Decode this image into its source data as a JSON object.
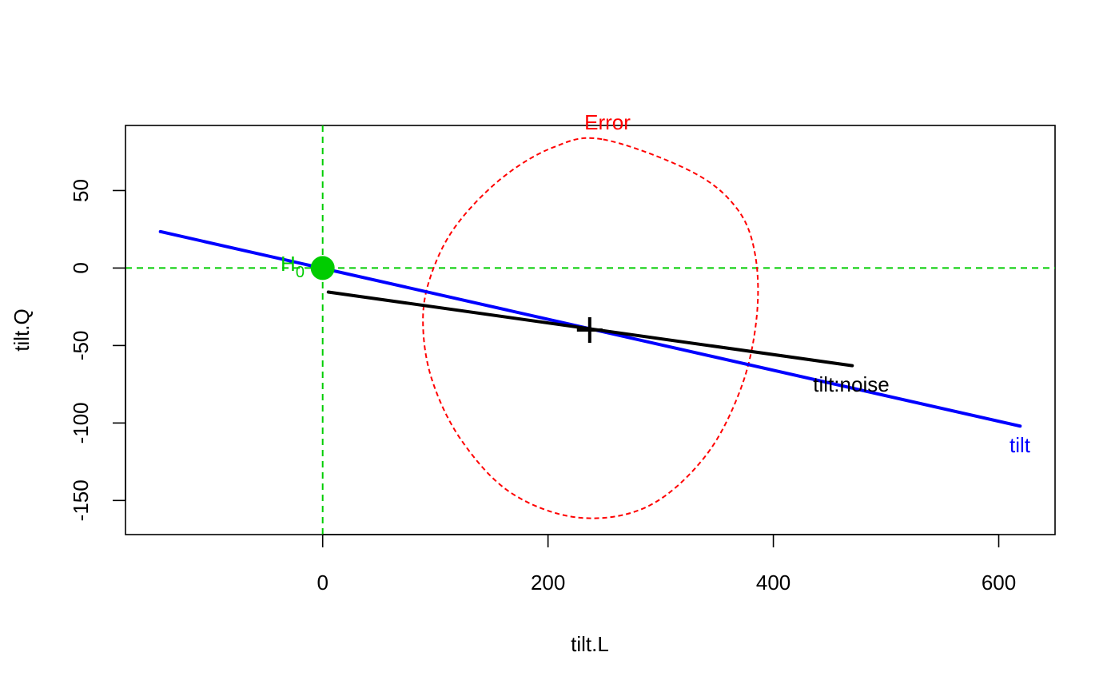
{
  "chart_data": {
    "type": "line",
    "title": "",
    "xlabel": "tilt.L",
    "ylabel": "tilt.Q",
    "xlim": [
      -175,
      650
    ],
    "ylim": [
      -172,
      92
    ],
    "xticks": [
      0,
      200,
      400,
      600
    ],
    "yticks": [
      50,
      0,
      -50,
      -100,
      -150
    ],
    "grid": false,
    "colors": {
      "h0": "#00cc00",
      "tilt": "#0000ff",
      "error": "#ff0000",
      "term": "#000000"
    },
    "hypothesis_point": {
      "label_main": "H",
      "label_sub": "0",
      "x": 0,
      "y": 0
    },
    "reference_lines": {
      "vertical_x": 0,
      "horizontal_y": 0,
      "style": "dashed"
    },
    "center": {
      "x": 237,
      "y": -40
    },
    "series": [
      {
        "name": "tilt",
        "x": [
          -144,
          619
        ],
        "y": [
          23.5,
          -102
        ]
      },
      {
        "name": "tilt:noise",
        "x": [
          5,
          470
        ],
        "y": [
          -15.5,
          -63
        ]
      }
    ],
    "ellipse": {
      "name": "Error",
      "points": [
        [
          249,
          83
        ],
        [
          328,
          62
        ],
        [
          368,
          38
        ],
        [
          384,
          8
        ],
        [
          385,
          -33
        ],
        [
          371,
          -78
        ],
        [
          339,
          -122
        ],
        [
          288,
          -154
        ],
        [
          227,
          -161
        ],
        [
          167,
          -145
        ],
        [
          123,
          -111
        ],
        [
          97,
          -72
        ],
        [
          89,
          -35
        ],
        [
          96,
          -5
        ],
        [
          118,
          27
        ],
        [
          159,
          58
        ],
        [
          205,
          78
        ]
      ]
    },
    "annotations": [
      "Error",
      "tilt",
      "tilt:noise"
    ]
  }
}
